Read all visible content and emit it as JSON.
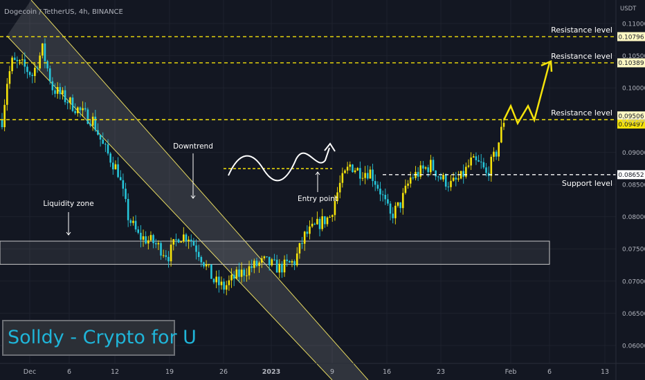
{
  "header": {
    "symbol_line": "Dogecoin / TetherUS, 4h, BINANCE"
  },
  "axis": {
    "currency": "USDT"
  },
  "watermark": "Solldy - Crypto for U",
  "colors": {
    "background": "#131722",
    "bull": "#f5e30b",
    "bear": "#26c6da",
    "level_line": "#f5e30b",
    "support_line": "#ffffff",
    "trendline": "#e6d960",
    "channel_fill": "#d0d0d0"
  },
  "chart_data": {
    "type": "candlestick",
    "title": "Dogecoin / TetherUS, 4h, BINANCE",
    "ylabel": "USDT",
    "ylim": [
      0.0566,
      0.1118
    ],
    "y_ticks": [
      "0.11000",
      "0.10500",
      "0.10000",
      "0.09500",
      "0.09000",
      "0.08500",
      "0.08000",
      "0.07500",
      "0.07000",
      "0.06500",
      "0.06000"
    ],
    "x_ticks": [
      "Dec",
      "6",
      "12",
      "19",
      "26",
      "2023",
      "9",
      "16",
      "23",
      "Feb",
      "6",
      "13"
    ],
    "price_path_keypoints": [
      [
        0,
        0.095
      ],
      [
        2,
        0.101
      ],
      [
        4,
        0.104
      ],
      [
        8,
        0.1035
      ],
      [
        12,
        0.102
      ],
      [
        16,
        0.106
      ],
      [
        20,
        0.1
      ],
      [
        26,
        0.098
      ],
      [
        32,
        0.096
      ],
      [
        36,
        0.095
      ],
      [
        40,
        0.091
      ],
      [
        46,
        0.087
      ],
      [
        50,
        0.08
      ],
      [
        54,
        0.077
      ],
      [
        60,
        0.076
      ],
      [
        66,
        0.074
      ],
      [
        70,
        0.077
      ],
      [
        74,
        0.077
      ],
      [
        78,
        0.0745
      ],
      [
        84,
        0.07
      ],
      [
        88,
        0.069
      ],
      [
        92,
        0.0705
      ],
      [
        98,
        0.072
      ],
      [
        104,
        0.073
      ],
      [
        110,
        0.072
      ],
      [
        116,
        0.073
      ],
      [
        120,
        0.077
      ],
      [
        126,
        0.079
      ],
      [
        130,
        0.08
      ],
      [
        134,
        0.085
      ],
      [
        138,
        0.088
      ],
      [
        142,
        0.087
      ],
      [
        146,
        0.087
      ],
      [
        150,
        0.084
      ],
      [
        154,
        0.08
      ],
      [
        158,
        0.082
      ],
      [
        162,
        0.086
      ],
      [
        166,
        0.087
      ],
      [
        170,
        0.088
      ],
      [
        174,
        0.086
      ],
      [
        178,
        0.085
      ],
      [
        182,
        0.086
      ],
      [
        186,
        0.0885
      ],
      [
        190,
        0.088
      ],
      [
        192,
        0.0865
      ],
      [
        196,
        0.09
      ],
      [
        199,
        0.095
      ]
    ],
    "levels": [
      {
        "label": "Resistance level",
        "price": 0.10796,
        "price_label": "0.10796",
        "style": "dashed-yellow"
      },
      {
        "label": "Resistance level",
        "price": 0.10389,
        "price_label": "0.10389",
        "style": "dashed-yellow"
      },
      {
        "label": "Resistance level",
        "price": 0.09506,
        "price_label": "0.09506",
        "style": "dashed-yellow"
      },
      {
        "label": "",
        "price": 0.09497,
        "price_label": "0.09497",
        "style": "current-price"
      },
      {
        "label": "Support level",
        "price": 0.08652,
        "price_label": "0.08652",
        "style": "dashed-white"
      }
    ],
    "annotations": [
      {
        "text": "Downtrend",
        "type": "arrow-down"
      },
      {
        "text": "Liquidity zone",
        "type": "arrow-down"
      },
      {
        "text": "Entry point",
        "type": "arrow-up"
      }
    ],
    "liquidity_zone": {
      "price_low": 0.0726,
      "price_high": 0.0762
    },
    "projection": [
      0.095,
      0.0972,
      0.0945,
      0.0972,
      0.095,
      0.1039
    ]
  }
}
